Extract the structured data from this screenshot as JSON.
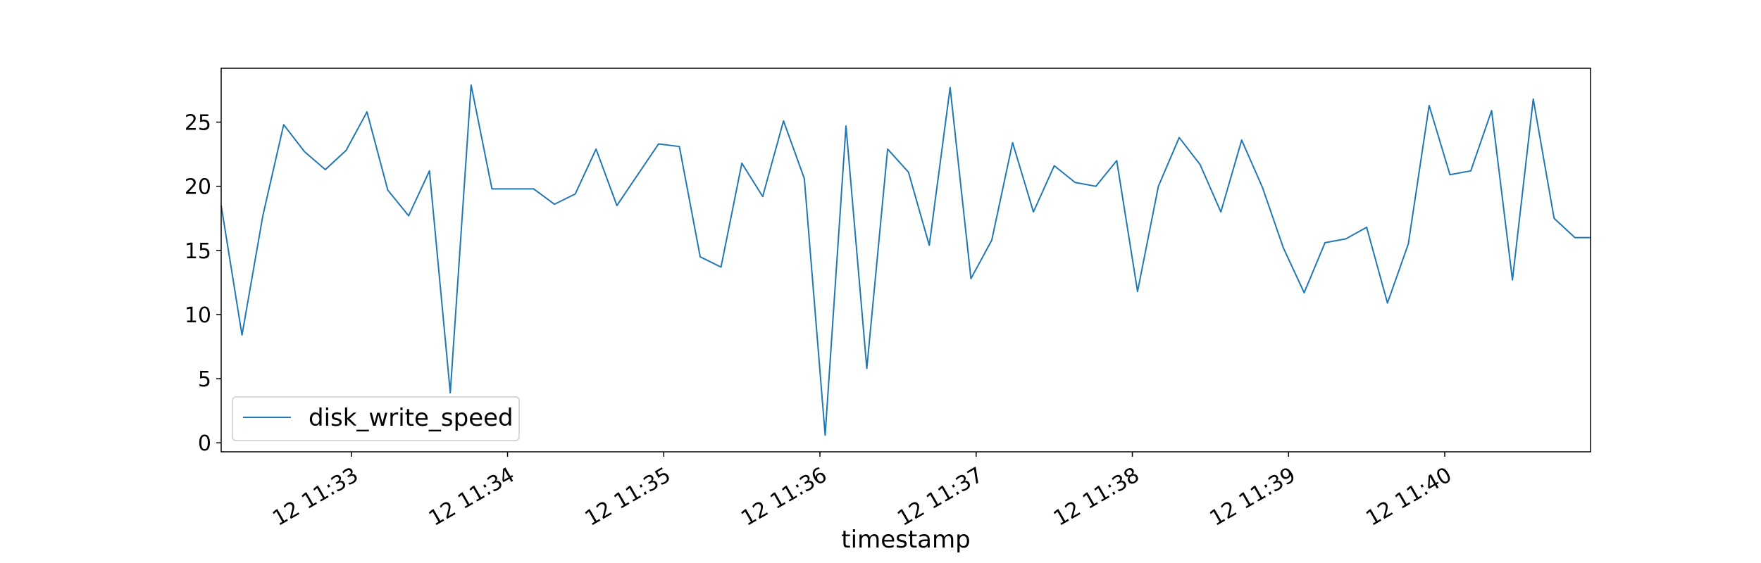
{
  "chart_data": {
    "type": "line",
    "title": "",
    "xlabel": "timestamp",
    "ylabel": "",
    "x_tick_labels": [
      "12 11:33",
      "12 11:34",
      "12 11:35",
      "12 11:36",
      "12 11:37",
      "12 11:38",
      "12 11:39",
      "12 11:40"
    ],
    "y_ticks": [
      0,
      5,
      10,
      15,
      20,
      25
    ],
    "ylim": [
      -0.7,
      29.2
    ],
    "xlim": [
      "11:32:10",
      "11:40:56"
    ],
    "grid": false,
    "legend_position": "lower-left",
    "series": [
      {
        "name": "disk_write_speed",
        "color": "#1f77b4",
        "x": [
          "11:32:10",
          "11:32:18",
          "11:32:26",
          "11:32:34",
          "11:32:42",
          "11:32:50",
          "11:32:58",
          "11:33:06",
          "11:33:14",
          "11:33:22",
          "11:33:30",
          "11:33:38",
          "11:33:46",
          "11:33:54",
          "11:34:02",
          "11:34:10",
          "11:34:18",
          "11:34:26",
          "11:34:34",
          "11:34:42",
          "11:34:50",
          "11:34:58",
          "11:35:06",
          "11:35:14",
          "11:35:22",
          "11:35:30",
          "11:35:38",
          "11:35:46",
          "11:35:54",
          "11:36:02",
          "11:36:10",
          "11:36:18",
          "11:36:26",
          "11:36:34",
          "11:36:42",
          "11:36:50",
          "11:36:58",
          "11:37:06",
          "11:37:14",
          "11:37:22",
          "11:37:30",
          "11:37:38",
          "11:37:46",
          "11:37:54",
          "11:38:02",
          "11:38:10",
          "11:38:18",
          "11:38:26",
          "11:38:34",
          "11:38:42",
          "11:38:50",
          "11:38:58",
          "11:39:06",
          "11:39:14",
          "11:39:22",
          "11:39:30",
          "11:39:38",
          "11:39:46",
          "11:39:54",
          "11:40:02",
          "11:40:10",
          "11:40:18",
          "11:40:26",
          "11:40:34",
          "11:40:42",
          "11:40:50",
          "11:40:56"
        ],
        "values": [
          18.5,
          8.4,
          17.7,
          24.8,
          22.7,
          21.3,
          22.8,
          25.8,
          19.7,
          17.7,
          21.2,
          3.9,
          27.9,
          19.8,
          19.8,
          19.8,
          18.6,
          19.4,
          22.9,
          18.5,
          20.9,
          23.3,
          23.1,
          14.5,
          13.7,
          21.8,
          19.2,
          25.1,
          20.6,
          0.6,
          24.7,
          5.8,
          22.9,
          21.1,
          15.4,
          27.7,
          12.8,
          15.8,
          23.4,
          18.0,
          21.6,
          20.3,
          20.0,
          22.0,
          11.8,
          20.0,
          23.8,
          21.7,
          18.0,
          23.6,
          19.9,
          15.2,
          11.7,
          15.6,
          15.9,
          16.8,
          10.9,
          15.5,
          26.3,
          20.9,
          21.2,
          25.9,
          12.7,
          26.8,
          17.5,
          16.0,
          16.0
        ]
      }
    ]
  }
}
